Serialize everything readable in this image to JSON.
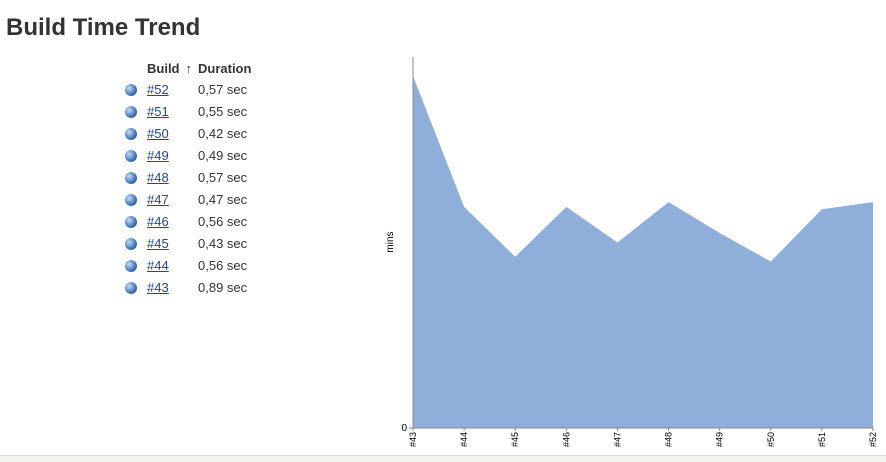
{
  "header": {
    "title": "Build Time Trend"
  },
  "table": {
    "header": [
      "Build",
      "↑",
      "Duration"
    ],
    "rows": [
      [
        "#52",
        "0,57 sec"
      ],
      [
        "#51",
        "0,55 sec"
      ],
      [
        "#50",
        "0,42 sec"
      ],
      [
        "#49",
        "0,49 sec"
      ],
      [
        "#48",
        "0,57 sec"
      ],
      [
        "#47",
        "0,47 sec"
      ],
      [
        "#46",
        "0,56 sec"
      ],
      [
        "#45",
        "0,43 sec"
      ],
      [
        "#44",
        "0,56 sec"
      ],
      [
        "#43",
        "0,89 sec"
      ]
    ]
  },
  "chart_data": {
    "type": "area",
    "y_label": "mins",
    "categories": [
      "#43",
      "#44",
      "#45",
      "#46",
      "#47",
      "#48",
      "#49",
      "#50",
      "#51",
      "#52"
    ],
    "values": [
      0.0148,
      0.0093,
      0.0072,
      0.0093,
      0.0078,
      0.0095,
      0.0082,
      0.007,
      0.0092,
      0.0095
    ],
    "color": "#8faed9",
    "ylim": [
      0,
      0.0156
    ],
    "yticks": [
      0
    ]
  }
}
